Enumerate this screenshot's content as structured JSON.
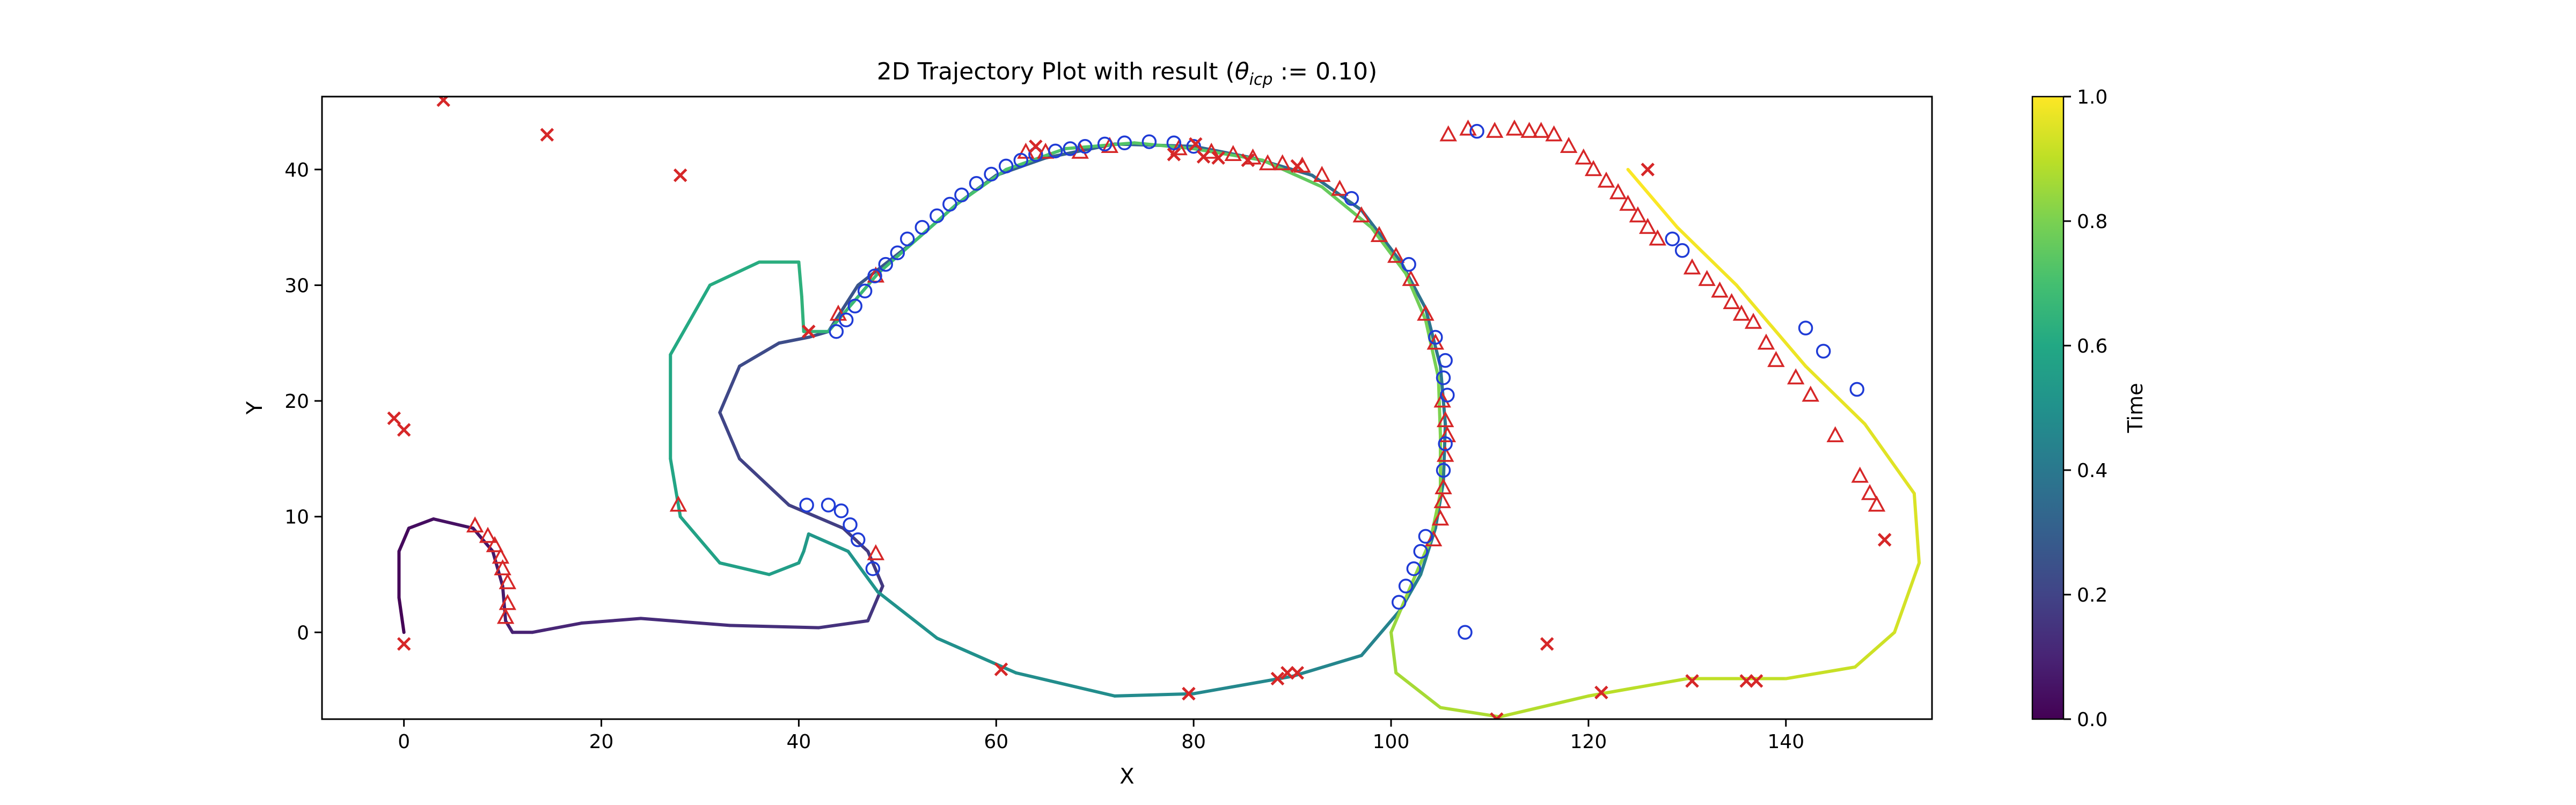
{
  "chart_data": {
    "type": "scatter",
    "title_prefix": "2D Trajectory Plot with result (",
    "title_theta": "θ",
    "title_sub": "icp",
    "title_suffix": " := 0.10)",
    "xlabel": "X",
    "ylabel": "Y",
    "xlim": [
      -8.3,
      154.8
    ],
    "ylim": [
      -7.5,
      46.3
    ],
    "xticks": [
      0,
      20,
      40,
      60,
      80,
      100,
      120,
      140
    ],
    "yticks": [
      0,
      10,
      20,
      30,
      40
    ],
    "grid": false,
    "colorbar": {
      "label": "Time",
      "cmap": "viridis",
      "range": [
        0.0,
        1.0
      ],
      "ticks": [
        "0.0",
        "0.2",
        "0.4",
        "0.6",
        "0.8",
        "1.0"
      ]
    },
    "trajectory": [
      [
        0,
        0,
        0.0
      ],
      [
        -0.5,
        3,
        0.01
      ],
      [
        -0.5,
        7,
        0.02
      ],
      [
        0.5,
        9,
        0.03
      ],
      [
        3,
        9.8,
        0.04
      ],
      [
        7,
        9,
        0.05
      ],
      [
        9,
        7,
        0.06
      ],
      [
        10,
        4,
        0.07
      ],
      [
        10.3,
        1,
        0.08
      ],
      [
        11,
        0,
        0.09
      ],
      [
        13,
        0,
        0.1
      ],
      [
        18,
        0.8,
        0.11
      ],
      [
        24,
        1.2,
        0.12
      ],
      [
        33,
        0.6,
        0.13
      ],
      [
        42,
        0.4,
        0.14
      ],
      [
        47,
        1,
        0.15
      ],
      [
        48.5,
        4,
        0.16
      ],
      [
        47,
        7,
        0.17
      ],
      [
        44.5,
        9,
        0.18
      ],
      [
        39,
        11,
        0.19
      ],
      [
        34,
        15,
        0.2
      ],
      [
        32,
        19,
        0.21
      ],
      [
        34,
        23,
        0.22
      ],
      [
        38,
        25,
        0.23
      ],
      [
        41,
        25.5,
        0.24
      ],
      [
        43,
        26,
        0.25
      ],
      [
        46,
        30,
        0.26
      ],
      [
        49,
        32,
        0.27
      ],
      [
        52,
        34,
        0.28
      ],
      [
        56,
        37,
        0.29
      ],
      [
        60,
        39.5,
        0.3
      ],
      [
        65,
        41,
        0.31
      ],
      [
        72,
        42.2,
        0.32
      ],
      [
        80,
        42,
        0.33
      ],
      [
        86,
        41,
        0.34
      ],
      [
        92,
        39.5,
        0.35
      ],
      [
        97,
        36.5,
        0.36
      ],
      [
        101,
        32,
        0.37
      ],
      [
        103.5,
        28,
        0.38
      ],
      [
        105,
        23,
        0.39
      ],
      [
        105.5,
        18,
        0.4
      ],
      [
        105.3,
        13,
        0.41
      ],
      [
        104.5,
        9,
        0.42
      ],
      [
        103,
        5,
        0.43
      ],
      [
        101,
        2,
        0.44
      ],
      [
        97,
        -2,
        0.45
      ],
      [
        90,
        -3.8,
        0.46
      ],
      [
        80,
        -5.3,
        0.47
      ],
      [
        72,
        -5.5,
        0.48
      ],
      [
        62,
        -3.5,
        0.49
      ],
      [
        54,
        -0.5,
        0.5
      ],
      [
        48,
        3.5,
        0.51
      ],
      [
        45,
        7,
        0.52
      ],
      [
        41,
        8.5,
        0.53
      ],
      [
        40.5,
        7,
        0.54
      ],
      [
        40,
        6,
        0.55
      ],
      [
        37,
        5,
        0.56
      ],
      [
        32,
        6,
        0.57
      ],
      [
        28,
        10,
        0.58
      ],
      [
        27,
        15,
        0.59
      ],
      [
        27,
        24,
        0.6
      ],
      [
        31,
        30,
        0.61
      ],
      [
        36,
        32,
        0.62
      ],
      [
        40,
        32,
        0.63
      ],
      [
        40.3,
        29,
        0.64
      ],
      [
        40.5,
        26,
        0.65
      ],
      [
        43,
        26,
        0.66
      ],
      [
        45,
        28,
        0.67
      ],
      [
        48,
        31,
        0.68
      ],
      [
        52,
        34,
        0.69
      ],
      [
        56,
        37,
        0.7
      ],
      [
        61,
        40,
        0.71
      ],
      [
        67,
        41.8,
        0.72
      ],
      [
        74,
        42.3,
        0.73
      ],
      [
        80,
        41.8,
        0.74
      ],
      [
        87,
        40.8,
        0.75
      ],
      [
        93,
        38.5,
        0.76
      ],
      [
        98,
        35,
        0.77
      ],
      [
        101.5,
        31,
        0.78
      ],
      [
        103.5,
        27,
        0.79
      ],
      [
        104.8,
        22,
        0.8
      ],
      [
        105,
        17,
        0.81
      ],
      [
        105,
        12,
        0.82
      ],
      [
        104,
        8,
        0.83
      ],
      [
        102,
        4,
        0.84
      ],
      [
        100,
        0,
        0.85
      ],
      [
        100.5,
        -3.5,
        0.86
      ],
      [
        105,
        -6.5,
        0.87
      ],
      [
        111,
        -7.3,
        0.88
      ],
      [
        120,
        -5.5,
        0.89
      ],
      [
        130,
        -4,
        0.9
      ],
      [
        140,
        -4,
        0.91
      ],
      [
        147,
        -3,
        0.92
      ],
      [
        151,
        0,
        0.93
      ],
      [
        153.5,
        6,
        0.94
      ],
      [
        153,
        12,
        0.95
      ],
      [
        148,
        18,
        0.96
      ],
      [
        142,
        23,
        0.97
      ],
      [
        135,
        30,
        0.98
      ],
      [
        129,
        35,
        0.99
      ],
      [
        124,
        40,
        1.0
      ]
    ],
    "trajectory_note": "",
    "markers": {
      "circles": [
        [
          40.8,
          11
        ],
        [
          43,
          11
        ],
        [
          44.3,
          10.5
        ],
        [
          45.2,
          9.3
        ],
        [
          46,
          8
        ],
        [
          47.5,
          5.5
        ],
        [
          43.8,
          26
        ],
        [
          44.8,
          27
        ],
        [
          45.7,
          28.2
        ],
        [
          46.7,
          29.5
        ],
        [
          47.7,
          30.8
        ],
        [
          48.8,
          31.8
        ],
        [
          50,
          32.8
        ],
        [
          51,
          34
        ],
        [
          52.5,
          35
        ],
        [
          54,
          36
        ],
        [
          55.3,
          37
        ],
        [
          56.5,
          37.8
        ],
        [
          58,
          38.8
        ],
        [
          59.5,
          39.6
        ],
        [
          61,
          40.3
        ],
        [
          62.5,
          40.8
        ],
        [
          64,
          41.3
        ],
        [
          66,
          41.6
        ],
        [
          67.5,
          41.8
        ],
        [
          69,
          42
        ],
        [
          71,
          42.2
        ],
        [
          73,
          42.3
        ],
        [
          75.5,
          42.4
        ],
        [
          78,
          42.3
        ],
        [
          80,
          42
        ],
        [
          100.8,
          2.6
        ],
        [
          101.5,
          4
        ],
        [
          102.3,
          5.5
        ],
        [
          103,
          7
        ],
        [
          103.5,
          8.3
        ],
        [
          104.5,
          25.5
        ],
        [
          105.5,
          23.5
        ],
        [
          105.3,
          22
        ],
        [
          105.7,
          20.5
        ],
        [
          105.5,
          16.3
        ],
        [
          105.3,
          14
        ],
        [
          101.8,
          31.8
        ],
        [
          96,
          37.5
        ],
        [
          108.7,
          43.3
        ],
        [
          128.5,
          34
        ],
        [
          129.5,
          33
        ],
        [
          142,
          26.3
        ],
        [
          143.8,
          24.3
        ],
        [
          147.2,
          21
        ],
        [
          107.5,
          0
        ]
      ],
      "triangles": [
        [
          7.2,
          9.2
        ],
        [
          8.5,
          8.3
        ],
        [
          9.2,
          7.5
        ],
        [
          9.8,
          6.5
        ],
        [
          10,
          5.5
        ],
        [
          10.5,
          4.3
        ],
        [
          10.5,
          2.5
        ],
        [
          10.3,
          1.3
        ],
        [
          27.8,
          11
        ],
        [
          44,
          27.5
        ],
        [
          47.8,
          6.8
        ],
        [
          47.8,
          30.8
        ],
        [
          63,
          41.5
        ],
        [
          65,
          41.5
        ],
        [
          68.5,
          41.5
        ],
        [
          71.5,
          42
        ],
        [
          78.5,
          41.8
        ],
        [
          81.8,
          41.5
        ],
        [
          84,
          41.3
        ],
        [
          86,
          41
        ],
        [
          87.5,
          40.5
        ],
        [
          89,
          40.5
        ],
        [
          91,
          40.3
        ],
        [
          93,
          39.5
        ],
        [
          94.8,
          38.3
        ],
        [
          97,
          36
        ],
        [
          98.8,
          34.3
        ],
        [
          100.5,
          32.5
        ],
        [
          102,
          30.5
        ],
        [
          103.5,
          27.5
        ],
        [
          104.5,
          25
        ],
        [
          105.2,
          20
        ],
        [
          105.5,
          18.3
        ],
        [
          105.7,
          17
        ],
        [
          105.5,
          15.3
        ],
        [
          105.3,
          12.5
        ],
        [
          105.2,
          11.3
        ],
        [
          105,
          9.8
        ],
        [
          104.3,
          8
        ],
        [
          105.8,
          43
        ],
        [
          107.8,
          43.5
        ],
        [
          110.5,
          43.3
        ],
        [
          112.5,
          43.5
        ],
        [
          114,
          43.3
        ],
        [
          115.2,
          43.3
        ],
        [
          116.5,
          43
        ],
        [
          118,
          42
        ],
        [
          119.5,
          41
        ],
        [
          120.5,
          40
        ],
        [
          121.8,
          39
        ],
        [
          123,
          38
        ],
        [
          124,
          37
        ],
        [
          125,
          36
        ],
        [
          126,
          35
        ],
        [
          127,
          34
        ],
        [
          130.5,
          31.5
        ],
        [
          132,
          30.5
        ],
        [
          133.3,
          29.5
        ],
        [
          134.5,
          28.5
        ],
        [
          135.5,
          27.5
        ],
        [
          136.7,
          26.8
        ],
        [
          138,
          25
        ],
        [
          139,
          23.5
        ],
        [
          141,
          22
        ],
        [
          142.5,
          20.5
        ],
        [
          145,
          17
        ],
        [
          147.5,
          13.5
        ],
        [
          148.5,
          12
        ],
        [
          149.2,
          11
        ]
      ],
      "crosses": [
        [
          4,
          46
        ],
        [
          14.5,
          43
        ],
        [
          28,
          39.5
        ],
        [
          -1,
          18.5
        ],
        [
          0,
          17.5
        ],
        [
          0,
          -1
        ],
        [
          41,
          26
        ],
        [
          60.5,
          -3.2
        ],
        [
          64,
          42
        ],
        [
          78,
          41.3
        ],
        [
          79.5,
          -5.3
        ],
        [
          80.2,
          42.2
        ],
        [
          81,
          41.1
        ],
        [
          82.5,
          41
        ],
        [
          85.5,
          40.8
        ],
        [
          90.5,
          40.3
        ],
        [
          88.5,
          -4
        ],
        [
          89.5,
          -3.5
        ],
        [
          90.5,
          -3.5
        ],
        [
          115.8,
          -1
        ],
        [
          121.3,
          -5.2
        ],
        [
          130.5,
          -4.2
        ],
        [
          136,
          -4.2
        ],
        [
          137,
          -4.2
        ],
        [
          110.7,
          -7.5
        ],
        [
          150,
          8
        ],
        [
          126,
          40
        ]
      ]
    }
  }
}
